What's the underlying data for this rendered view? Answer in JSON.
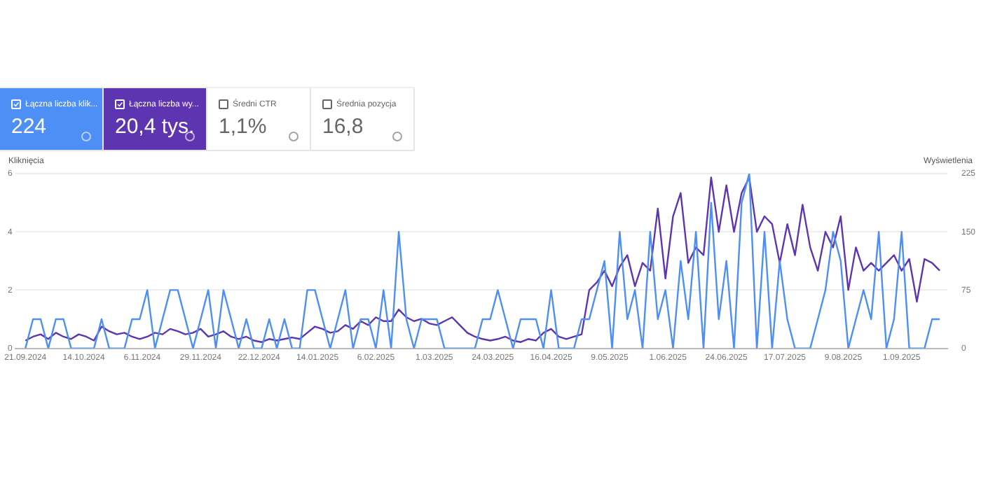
{
  "chart_data": [
    {
      "type": "other",
      "annotations": [
        "Łączna liczba klik...",
        "224",
        "Łączna liczba wy...",
        "20,4 tys.",
        "Średni CTR",
        "1,1%",
        "Średnia pozycja",
        "16,8"
      ]
    },
    {
      "type": "line",
      "ylabel": "Kliknięcia",
      "y2label": "Wyświetlenia",
      "grid": "y",
      "legend": false,
      "marker": "none",
      "line_style": "solid",
      "xlim": [
        "2024-09-17",
        "2025-09-19"
      ],
      "xticks": [
        {
          "value": "2024-09-21",
          "label": "21.09.2024"
        },
        {
          "value": "2024-10-14",
          "label": "14.10.2024"
        },
        {
          "value": "2024-11-06",
          "label": "6.11.2024"
        },
        {
          "value": "2024-11-29",
          "label": "29.11.2024"
        },
        {
          "value": "2024-12-22",
          "label": "22.12.2024"
        },
        {
          "value": "2025-01-14",
          "label": "14.01.2025"
        },
        {
          "value": "2025-02-06",
          "label": "6.02.2025"
        },
        {
          "value": "2025-03-01",
          "label": "1.03.2025"
        },
        {
          "value": "2025-03-24",
          "label": "24.03.2025"
        },
        {
          "value": "2025-04-16",
          "label": "16.04.2025"
        },
        {
          "value": "2025-05-09",
          "label": "9.05.2025"
        },
        {
          "value": "2025-06-01",
          "label": "1.06.2025"
        },
        {
          "value": "2025-06-24",
          "label": "24.06.2025"
        },
        {
          "value": "2025-07-17",
          "label": "17.07.2025"
        },
        {
          "value": "2025-08-09",
          "label": "9.08.2025"
        },
        {
          "value": "2025-09-01",
          "label": "1.09.2025"
        }
      ],
      "ylim": [
        0,
        6
      ],
      "yticks": [
        0,
        2,
        4,
        6
      ],
      "y2lim": [
        0,
        225
      ],
      "y2ticks": [
        0,
        75,
        150,
        225
      ],
      "x": [
        "2024-09-21",
        "2024-09-24",
        "2024-09-27",
        "2024-09-30",
        "2024-10-03",
        "2024-10-06",
        "2024-10-09",
        "2024-10-12",
        "2024-10-15",
        "2024-10-18",
        "2024-10-21",
        "2024-10-24",
        "2024-10-27",
        "2024-10-30",
        "2024-11-02",
        "2024-11-05",
        "2024-11-08",
        "2024-11-11",
        "2024-11-14",
        "2024-11-17",
        "2024-11-20",
        "2024-11-23",
        "2024-11-26",
        "2024-11-29",
        "2024-12-02",
        "2024-12-05",
        "2024-12-08",
        "2024-12-11",
        "2024-12-14",
        "2024-12-17",
        "2024-12-20",
        "2024-12-23",
        "2024-12-26",
        "2024-12-29",
        "2025-01-01",
        "2025-01-04",
        "2025-01-07",
        "2025-01-10",
        "2025-01-13",
        "2025-01-16",
        "2025-01-19",
        "2025-01-22",
        "2025-01-25",
        "2025-01-28",
        "2025-01-31",
        "2025-02-03",
        "2025-02-06",
        "2025-02-09",
        "2025-02-12",
        "2025-02-15",
        "2025-02-18",
        "2025-02-21",
        "2025-02-24",
        "2025-02-27",
        "2025-03-02",
        "2025-03-05",
        "2025-03-08",
        "2025-03-11",
        "2025-03-14",
        "2025-03-17",
        "2025-03-20",
        "2025-03-23",
        "2025-03-26",
        "2025-03-29",
        "2025-04-01",
        "2025-04-04",
        "2025-04-07",
        "2025-04-10",
        "2025-04-13",
        "2025-04-16",
        "2025-04-19",
        "2025-04-22",
        "2025-04-25",
        "2025-04-28",
        "2025-05-01",
        "2025-05-04",
        "2025-05-07",
        "2025-05-10",
        "2025-05-13",
        "2025-05-16",
        "2025-05-19",
        "2025-05-22",
        "2025-05-25",
        "2025-05-28",
        "2025-05-31",
        "2025-06-03",
        "2025-06-06",
        "2025-06-09",
        "2025-06-12",
        "2025-06-15",
        "2025-06-18",
        "2025-06-21",
        "2025-06-24",
        "2025-06-27",
        "2025-06-30",
        "2025-07-03",
        "2025-07-06",
        "2025-07-09",
        "2025-07-12",
        "2025-07-15",
        "2025-07-18",
        "2025-07-21",
        "2025-07-24",
        "2025-07-27",
        "2025-07-30",
        "2025-08-02",
        "2025-08-05",
        "2025-08-08",
        "2025-08-11",
        "2025-08-14",
        "2025-08-17",
        "2025-08-20",
        "2025-08-23",
        "2025-08-26",
        "2025-08-29",
        "2025-09-01",
        "2025-09-04",
        "2025-09-07",
        "2025-09-10",
        "2025-09-13",
        "2025-09-16"
      ],
      "series": [
        {
          "color": "#4d8ff5",
          "axis": "y",
          "values": [
            0,
            1,
            1,
            0,
            1,
            1,
            0,
            0,
            0,
            0,
            1,
            0,
            0,
            0,
            1,
            1,
            2,
            0,
            1,
            2,
            2,
            1,
            0,
            1,
            2,
            0,
            2,
            1,
            0,
            1,
            0,
            0,
            1,
            0,
            1,
            0,
            0,
            2,
            2,
            1,
            0,
            1,
            2,
            0,
            1,
            1,
            0,
            2,
            0,
            4,
            1,
            0,
            1,
            1,
            1,
            0,
            0,
            0,
            0,
            0,
            1,
            1,
            2,
            1,
            0,
            1,
            1,
            1,
            0,
            2,
            0,
            0,
            0,
            1,
            1,
            2,
            3,
            0,
            4,
            1,
            2,
            0,
            4,
            1,
            2,
            0,
            3,
            1,
            4,
            0,
            5,
            1,
            3,
            0,
            5,
            6,
            0,
            4,
            0,
            3,
            1,
            0,
            0,
            0,
            1,
            2,
            4,
            3,
            0,
            1,
            2,
            1,
            4,
            0,
            1,
            4,
            0,
            0,
            0,
            1,
            1
          ]
        },
        {
          "color": "#5e35b1",
          "axis": "y2",
          "values": [
            10,
            15,
            18,
            12,
            20,
            15,
            12,
            18,
            15,
            10,
            28,
            22,
            18,
            20,
            15,
            12,
            15,
            20,
            18,
            25,
            22,
            18,
            20,
            25,
            15,
            18,
            22,
            15,
            12,
            15,
            10,
            8,
            12,
            10,
            12,
            14,
            12,
            20,
            28,
            25,
            20,
            22,
            30,
            25,
            35,
            30,
            40,
            35,
            35,
            50,
            40,
            35,
            38,
            32,
            30,
            35,
            40,
            30,
            20,
            15,
            12,
            10,
            12,
            15,
            10,
            8,
            12,
            10,
            20,
            25,
            15,
            12,
            15,
            18,
            75,
            85,
            100,
            80,
            105,
            120,
            80,
            110,
            100,
            180,
            90,
            170,
            200,
            110,
            130,
            120,
            220,
            150,
            210,
            150,
            200,
            220,
            150,
            170,
            160,
            110,
            160,
            120,
            185,
            130,
            100,
            150,
            130,
            170,
            75,
            130,
            100,
            110,
            100,
            110,
            120,
            100,
            115,
            60,
            115,
            110,
            100
          ]
        }
      ]
    }
  ]
}
